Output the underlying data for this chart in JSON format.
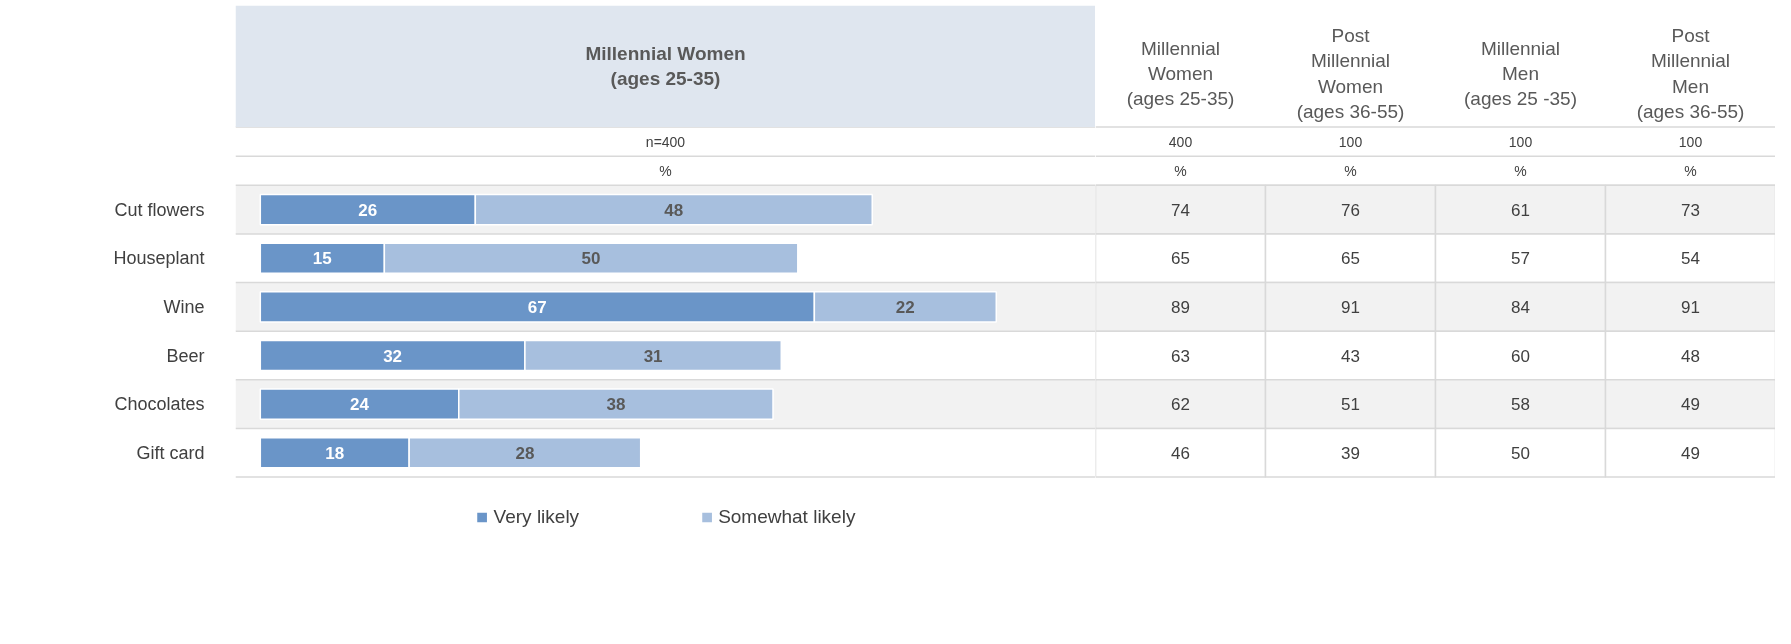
{
  "chart_data": [
    {
      "type": "bar",
      "orientation": "horizontal",
      "stacked": true,
      "title": "Millennial Women\n(ages 25-35)",
      "categories": [
        "Cut flowers",
        "Houseplant",
        "Wine",
        "Beer",
        "Chocolates",
        "Gift card"
      ],
      "series": [
        {
          "name": "Very likely",
          "color": "#6a95c8",
          "values": [
            26,
            15,
            67,
            32,
            24,
            18
          ]
        },
        {
          "name": "Somewhat likely",
          "color": "#a7bfde",
          "values": [
            48,
            50,
            22,
            31,
            38,
            28
          ]
        }
      ],
      "xlim": [
        -3,
        101
      ],
      "data_labels": true,
      "legend": "bottom",
      "tick_labels": "y",
      "annotations": [
        "n=400",
        "%"
      ]
    },
    {
      "type": "heatmap",
      "categories": [
        "Millennial\nWomen\n(ages 25-35)",
        "Post\nMillennial\nWomen\n(ages 36-55)",
        "Millennial\nMen\n(ages 25 -35)",
        "Post\nMillennial\nMen\n(ages 36-55)"
      ],
      "y_categories": [
        null,
        null,
        null,
        null,
        null,
        null
      ],
      "cells": [
        [
          74,
          76,
          61,
          73
        ],
        [
          65,
          65,
          57,
          54
        ],
        [
          89,
          91,
          84,
          91
        ],
        [
          63,
          43,
          60,
          48
        ],
        [
          62,
          51,
          58,
          49
        ],
        [
          46,
          39,
          50,
          49
        ]
      ],
      "tick_labels": false,
      "data_labels": true,
      "annotations": [
        "400",
        "100",
        "100",
        "100",
        "%",
        "%",
        "%",
        "%"
      ]
    }
  ]
}
